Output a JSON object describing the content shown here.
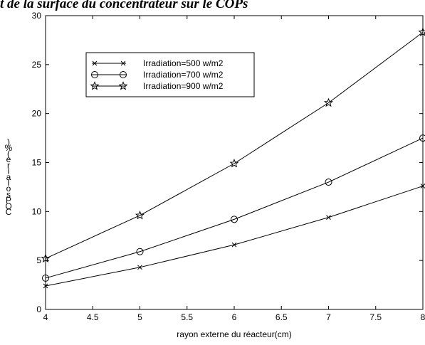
{
  "chart_data": {
    "type": "line",
    "title": "t de la surface du concentrateur sur le COPs",
    "xlabel": "rayon externe du réacteur(cm)",
    "ylabel": "COPsolaire(%)",
    "xlim": [
      4,
      8
    ],
    "ylim": [
      0,
      30
    ],
    "xticks": [
      "4",
      "4.5",
      "5",
      "5.5",
      "6",
      "6.5",
      "7",
      "7.5",
      "8"
    ],
    "yticks": [
      "0",
      "5",
      "10",
      "15",
      "20",
      "25",
      "30"
    ],
    "grid": false,
    "legend_position": "top-left",
    "x": [
      4,
      5,
      6,
      7,
      8
    ],
    "series": [
      {
        "name": "Irradiation=500 w/m2",
        "marker": "x",
        "values": [
          2.4,
          4.3,
          6.6,
          9.4,
          12.6
        ]
      },
      {
        "name": "Irradiation=700 w/m2",
        "marker": "o",
        "values": [
          3.2,
          5.9,
          9.2,
          13.0,
          17.5
        ]
      },
      {
        "name": "Irradiation=900 w/m2",
        "marker": "star",
        "values": [
          5.2,
          9.6,
          14.9,
          21.1,
          28.3
        ]
      }
    ]
  }
}
